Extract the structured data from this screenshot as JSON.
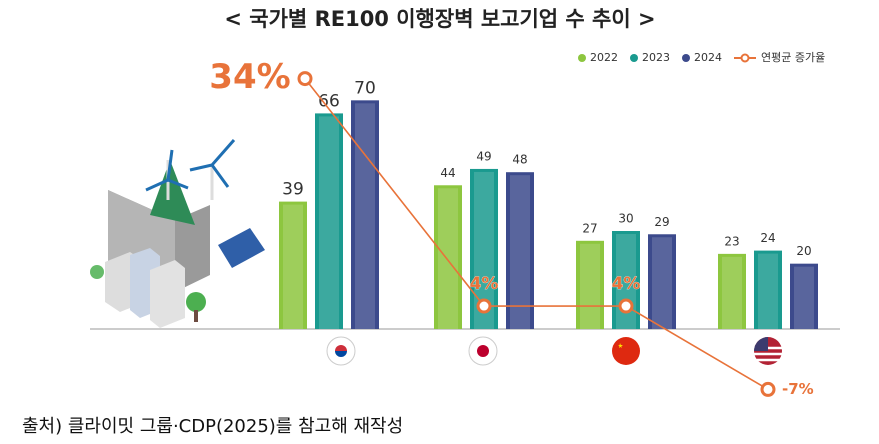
{
  "chart_data": {
    "type": "bar",
    "title": "< 국가별 RE100 이행장벽 보고기업 수 추이 >",
    "source": "출처) 클라이밋 그룹·CDP(2025)를 참고해 재작성",
    "categories": [
      null,
      null,
      null,
      null
    ],
    "ylim": [
      0,
      75
    ],
    "y2lim": [
      -8,
      35
    ],
    "series": [
      {
        "name": "2022",
        "color": "#8dc63f",
        "values": [
          39,
          44,
          27,
          23
        ]
      },
      {
        "name": "2023",
        "color": "#1a9a8f",
        "values": [
          66,
          49,
          30,
          24
        ]
      },
      {
        "name": "2024",
        "color": "#3c4a8c",
        "values": [
          70,
          48,
          29,
          20
        ]
      },
      {
        "name": "연평균 증가율",
        "color": "#e8733a",
        "type": "line",
        "axis": "y2",
        "values": [
          34,
          4,
          4,
          -7
        ],
        "value_labels": [
          "34%",
          "4%",
          "4%",
          "-7%"
        ]
      }
    ]
  }
}
